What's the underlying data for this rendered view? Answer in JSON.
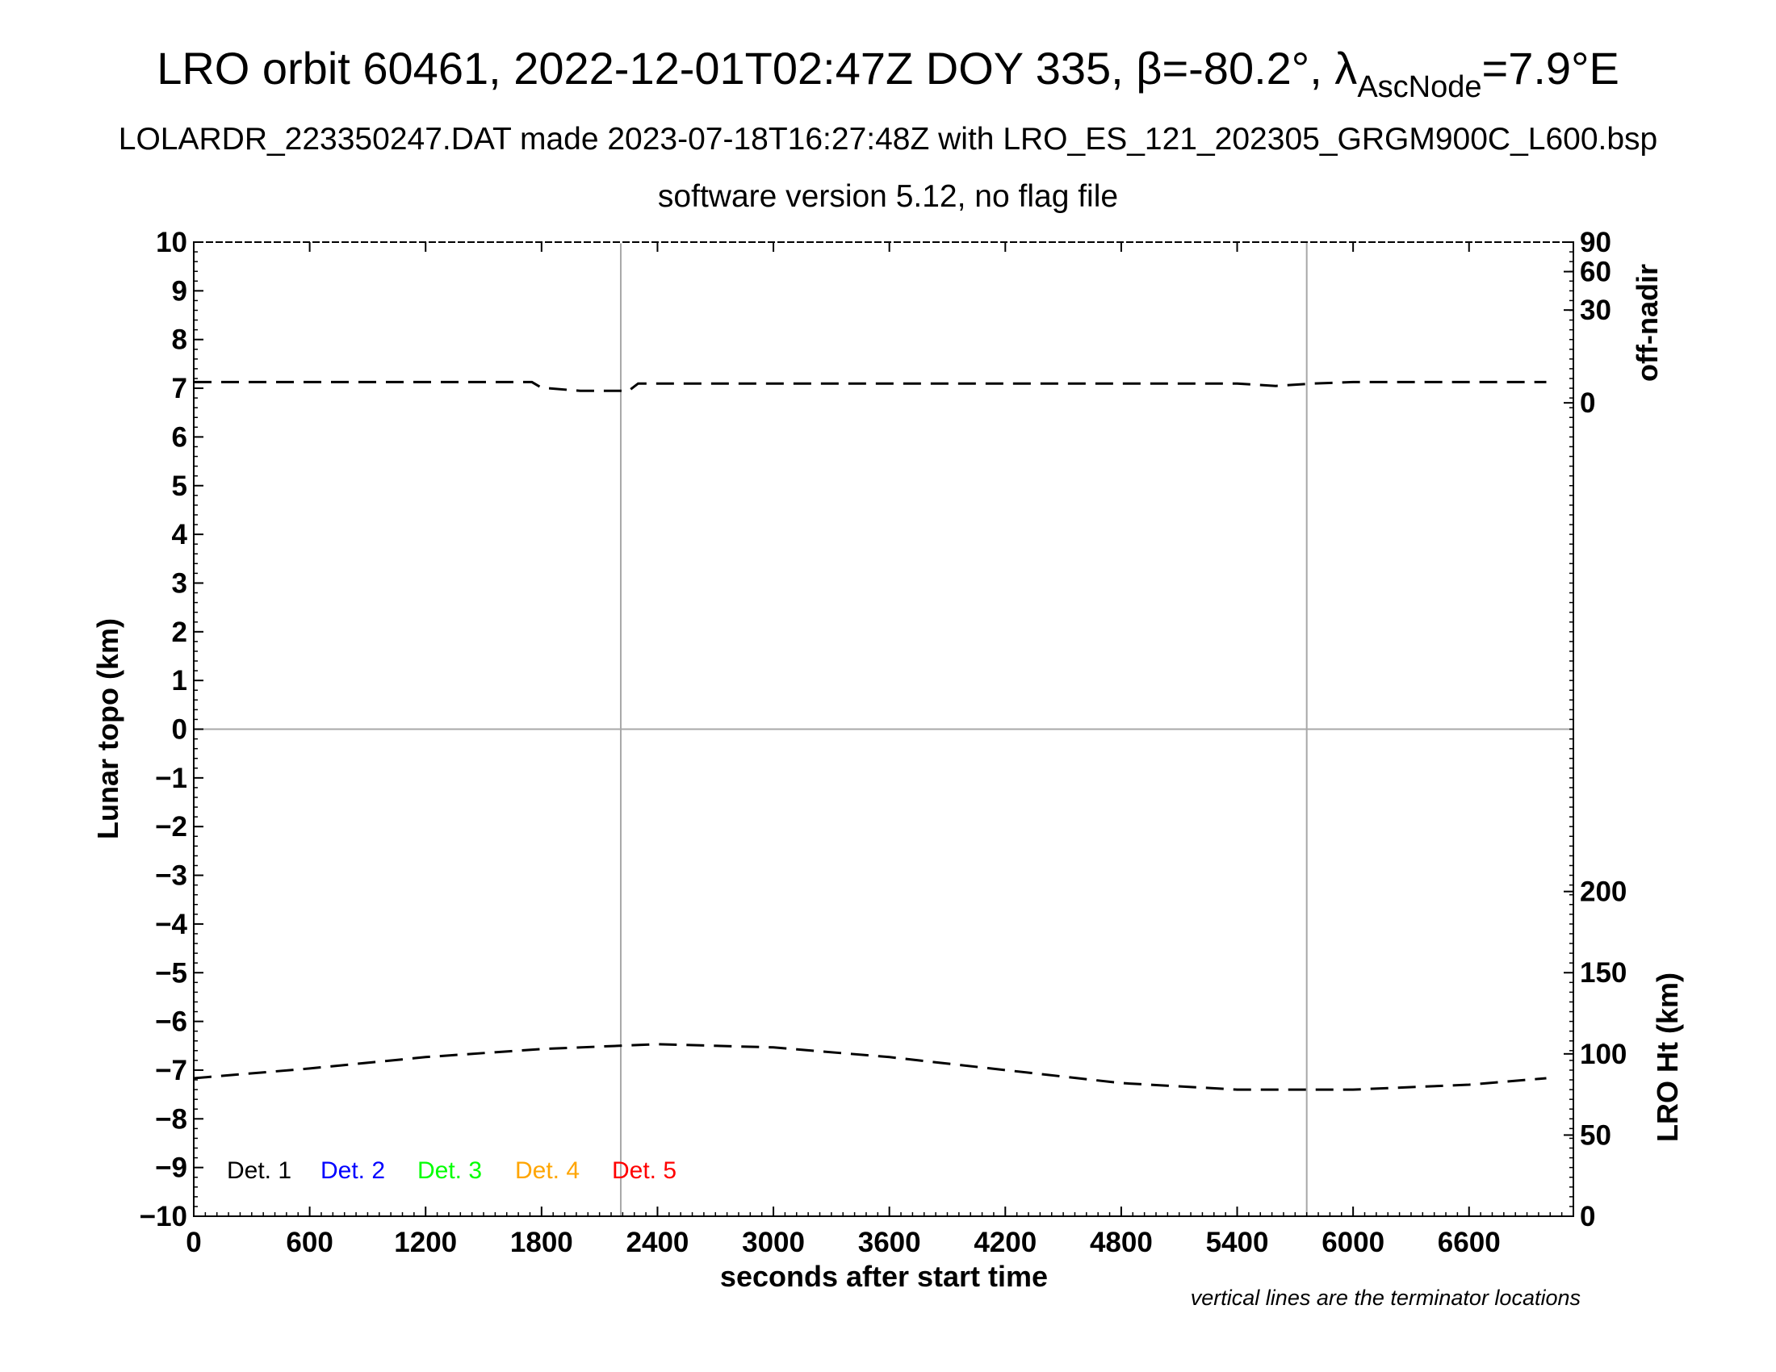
{
  "chart_data": {
    "type": "line",
    "title": "LRO orbit 60461, 2022-12-01T02:47Z DOY 335, β=-80.2°, λ",
    "title_sub": "AscNode",
    "title_end": "=7.9°E",
    "subtitle": "LOLARDR_223350247.DAT made 2023-07-18T16:27:48Z with LRO_ES_121_202305_GRGM900C_L600.bsp",
    "subtitle2": "software version 5.12, no flag file",
    "xlabel": "seconds after start time",
    "ylabel": "Lunar topo (km)",
    "y2label_top": "off-nadir",
    "y2label_bottom": "LRO Ht (km)",
    "note": "vertical lines are the terminator locations",
    "xlim": [
      0,
      7140
    ],
    "ylim": [
      -10,
      10
    ],
    "x_ticks": [
      0,
      600,
      1200,
      1800,
      2400,
      3000,
      3600,
      4200,
      4800,
      5400,
      6000,
      6600
    ],
    "x_tick_labels": [
      "0",
      "600",
      "1200",
      "1800",
      "2400",
      "3000",
      "3600",
      "4200",
      "4800",
      "5400",
      "6000",
      "6600"
    ],
    "y_ticks": [
      10,
      9,
      8,
      7,
      6,
      5,
      4,
      3,
      2,
      1,
      0,
      -1,
      -2,
      -3,
      -4,
      -5,
      -6,
      -7,
      -8,
      -9,
      -10
    ],
    "y_tick_labels": [
      "10",
      "9",
      "8",
      "7",
      "6",
      "5",
      "4",
      "3",
      "2",
      "1",
      "0",
      "−1",
      "−2",
      "−3",
      "−4",
      "−5",
      "−6",
      "−7",
      "−8",
      "−9",
      "−10"
    ],
    "off_nadir_ticks": [
      0,
      30,
      60,
      90
    ],
    "off_nadir_tick_labels": [
      "0",
      "30",
      "60",
      "90"
    ],
    "lro_ht_ticks": [
      0,
      50,
      100,
      150,
      200
    ],
    "lro_ht_tick_labels": [
      "0",
      "50",
      "100",
      "150",
      "200"
    ],
    "terminators": [
      2210,
      5760
    ],
    "grid": "zero line and terminator lines only",
    "legend_placement": "bottom-left",
    "legend": [
      {
        "label": "Det. 1",
        "color": "#000000"
      },
      {
        "label": "Det. 2",
        "color": "#0000ff"
      },
      {
        "label": "Det. 3",
        "color": "#00ff00"
      },
      {
        "label": "Det. 4",
        "color": "#ffa500"
      },
      {
        "label": "Det. 5",
        "color": "#ff0000"
      }
    ],
    "series": [
      {
        "name": "off-nadir",
        "axis": "off-nadir",
        "x": [
          0,
          600,
          1200,
          1750,
          1800,
          2000,
          2250,
          2300,
          2400,
          3000,
          3600,
          4200,
          4800,
          5400,
          5600,
          5800,
          6000,
          6600,
          7000
        ],
        "values": [
          1.5,
          1.5,
          1.5,
          1.5,
          0.8,
          0.5,
          0.5,
          1.3,
          1.3,
          1.3,
          1.3,
          1.3,
          1.3,
          1.3,
          1.0,
          1.3,
          1.5,
          1.5,
          1.5
        ]
      },
      {
        "name": "LRO Ht",
        "axis": "LRO Ht (km)",
        "x": [
          0,
          600,
          1200,
          1800,
          2400,
          3000,
          3600,
          4200,
          4800,
          5400,
          6000,
          6600,
          7000
        ],
        "values": [
          85,
          91,
          98,
          103,
          106,
          104,
          98,
          90,
          82,
          78,
          78,
          81,
          85
        ]
      }
    ]
  }
}
